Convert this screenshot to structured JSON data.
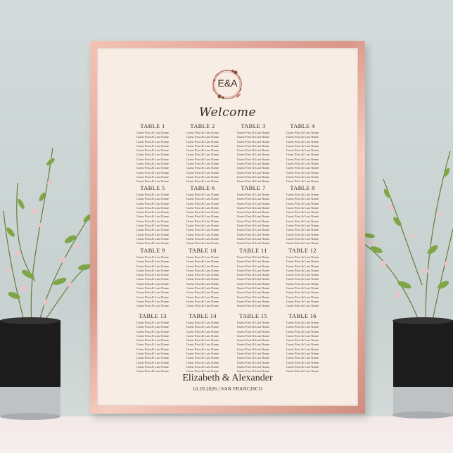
{
  "sign": {
    "monogram": "E&A",
    "welcome": "Welcome",
    "couple": "Elizabeth & Alexander",
    "date_location": "10.20.2026 | SAN FRANCISCO",
    "tables": [
      {
        "name": "TABLE 1",
        "guests": [
          "Guest First & Last Name",
          "Guest First & Last Name",
          "Guest First & Last Name",
          "Guest First & Last Name",
          "Guest First & Last Name",
          "Guest First & Last Name",
          "Guest First & Last Name",
          "Guest First & Last Name",
          "Guest First & Last Name",
          "Guest First & Last Name",
          "Guest First & Last Name",
          "Guest First & Last Name"
        ]
      },
      {
        "name": "TABLE 2",
        "guests": [
          "Guest First & Last Name",
          "Guest First & Last Name",
          "Guest First & Last Name",
          "Guest First & Last Name",
          "Guest First & Last Name",
          "Guest First & Last Name",
          "Guest First & Last Name",
          "Guest First & Last Name",
          "Guest First & Last Name",
          "Guest First & Last Name",
          "Guest First & Last Name",
          "Guest First & Last Name"
        ]
      },
      {
        "name": "TABLE 3",
        "guests": [
          "Guest First & Last Name",
          "Guest First & Last Name",
          "Guest First & Last Name",
          "Guest First & Last Name",
          "Guest First & Last Name",
          "Guest First & Last Name",
          "Guest First & Last Name",
          "Guest First & Last Name",
          "Guest First & Last Name",
          "Guest First & Last Name",
          "Guest First & Last Name",
          "Guest First & Last Name"
        ]
      },
      {
        "name": "TABLE 4",
        "guests": [
          "Guest First & Last Name",
          "Guest First & Last Name",
          "Guest First & Last Name",
          "Guest First & Last Name",
          "Guest First & Last Name",
          "Guest First & Last Name",
          "Guest First & Last Name",
          "Guest First & Last Name",
          "Guest First & Last Name",
          "Guest First & Last Name",
          "Guest First & Last Name",
          "Guest First & Last Name"
        ]
      },
      {
        "name": "TABLE 5",
        "guests": [
          "Guest First & Last Name",
          "Guest First & Last Name",
          "Guest First & Last Name",
          "Guest First & Last Name",
          "Guest First & Last Name",
          "Guest First & Last Name",
          "Guest First & Last Name",
          "Guest First & Last Name",
          "Guest First & Last Name",
          "Guest First & Last Name",
          "Guest First & Last Name",
          "Guest First & Last Name"
        ]
      },
      {
        "name": "TABLE 6",
        "guests": [
          "Guest First & Last Name",
          "Guest First & Last Name",
          "Guest First & Last Name",
          "Guest First & Last Name",
          "Guest First & Last Name",
          "Guest First & Last Name",
          "Guest First & Last Name",
          "Guest First & Last Name",
          "Guest First & Last Name",
          "Guest First & Last Name",
          "Guest First & Last Name",
          "Guest First & Last Name"
        ]
      },
      {
        "name": "TABLE 7",
        "guests": [
          "Guest First & Last Name",
          "Guest First & Last Name",
          "Guest First & Last Name",
          "Guest First & Last Name",
          "Guest First & Last Name",
          "Guest First & Last Name",
          "Guest First & Last Name",
          "Guest First & Last Name",
          "Guest First & Last Name",
          "Guest First & Last Name",
          "Guest First & Last Name",
          "Guest First & Last Name"
        ]
      },
      {
        "name": "TABLE 8",
        "guests": [
          "Guest First & Last Name",
          "Guest First & Last Name",
          "Guest First & Last Name",
          "Guest First & Last Name",
          "Guest First & Last Name",
          "Guest First & Last Name",
          "Guest First & Last Name",
          "Guest First & Last Name",
          "Guest First & Last Name",
          "Guest First & Last Name",
          "Guest First & Last Name",
          "Guest First & Last Name"
        ]
      },
      {
        "name": "TABLE 9",
        "guests": [
          "Guest First & Last Name",
          "Guest First & Last Name",
          "Guest First & Last Name",
          "Guest First & Last Name",
          "Guest First & Last Name",
          "Guest First & Last Name",
          "Guest First & Last Name",
          "Guest First & Last Name",
          "Guest First & Last Name",
          "Guest First & Last Name",
          "Guest First & Last Name",
          "Guest First & Last Name"
        ]
      },
      {
        "name": "TABLE 10",
        "guests": [
          "Guest First & Last Name",
          "Guest First & Last Name",
          "Guest First & Last Name",
          "Guest First & Last Name",
          "Guest First & Last Name",
          "Guest First & Last Name",
          "Guest First & Last Name",
          "Guest First & Last Name",
          "Guest First & Last Name",
          "Guest First & Last Name",
          "Guest First & Last Name",
          "Guest First & Last Name"
        ]
      },
      {
        "name": "TABLE 11",
        "guests": [
          "Guest First & Last Name",
          "Guest First & Last Name",
          "Guest First & Last Name",
          "Guest First & Last Name",
          "Guest First & Last Name",
          "Guest First & Last Name",
          "Guest First & Last Name",
          "Guest First & Last Name",
          "Guest First & Last Name",
          "Guest First & Last Name",
          "Guest First & Last Name",
          "Guest First & Last Name"
        ]
      },
      {
        "name": "TABLE 12",
        "guests": [
          "Guest First & Last Name",
          "Guest First & Last Name",
          "Guest First & Last Name",
          "Guest First & Last Name",
          "Guest First & Last Name",
          "Guest First & Last Name",
          "Guest First & Last Name",
          "Guest First & Last Name",
          "Guest First & Last Name",
          "Guest First & Last Name",
          "Guest First & Last Name",
          "Guest First & Last Name"
        ]
      },
      {
        "name": "TABLE 13",
        "guests": [
          "Guest First & Last Name",
          "Guest First & Last Name",
          "Guest First & Last Name",
          "Guest First & Last Name",
          "Guest First & Last Name",
          "Guest First & Last Name",
          "Guest First & Last Name",
          "Guest First & Last Name",
          "Guest First & Last Name",
          "Guest First & Last Name",
          "Guest First & Last Name",
          "Guest First & Last Name"
        ]
      },
      {
        "name": "TABLE 14",
        "guests": [
          "Guest First & Last Name",
          "Guest First & Last Name",
          "Guest First & Last Name",
          "Guest First & Last Name",
          "Guest First & Last Name",
          "Guest First & Last Name",
          "Guest First & Last Name",
          "Guest First & Last Name",
          "Guest First & Last Name",
          "Guest First & Last Name",
          "Guest First & Last Name",
          "Guest First & Last Name"
        ]
      },
      {
        "name": "TABLE 15",
        "guests": [
          "Guest First & Last Name",
          "Guest First & Last Name",
          "Guest First & Last Name",
          "Guest First & Last Name",
          "Guest First & Last Name",
          "Guest First & Last Name",
          "Guest First & Last Name",
          "Guest First & Last Name",
          "Guest First & Last Name",
          "Guest First & Last Name",
          "Guest First & Last Name",
          "Guest First & Last Name"
        ]
      },
      {
        "name": "TABLE 16",
        "guests": [
          "Guest First & Last Name",
          "Guest First & Last Name",
          "Guest First & Last Name",
          "Guest First & Last Name",
          "Guest First & Last Name",
          "Guest First & Last Name",
          "Guest First & Last Name",
          "Guest First & Last Name",
          "Guest First & Last Name",
          "Guest First & Last Name",
          "Guest First & Last Name",
          "Guest First & Last Name"
        ]
      }
    ]
  },
  "colors": {
    "frame": "#d9978a",
    "paper": "#f8ede4",
    "text": "#3a2b24",
    "wall": "#cfd8d7",
    "pot": "#1c1c1c"
  },
  "icons": {
    "wreath": "floral-wreath-icon",
    "plants": "flowering-plant-icon"
  }
}
